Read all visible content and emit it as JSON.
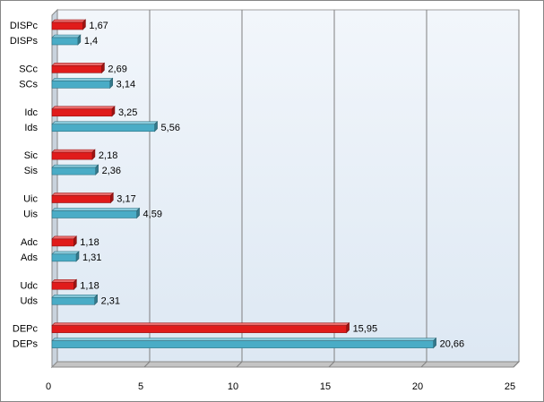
{
  "chart_data": {
    "type": "bar",
    "orientation": "horizontal",
    "categories": [
      "DISPc",
      "DISPs",
      "SCc",
      "SCs",
      "Idc",
      "Ids",
      "Sic",
      "Sis",
      "Uic",
      "Uis",
      "Adc",
      "Ads",
      "Udc",
      "Uds",
      "DEPc",
      "DEPs"
    ],
    "values": [
      1.67,
      1.4,
      2.69,
      3.14,
      3.25,
      5.56,
      2.18,
      2.36,
      3.17,
      4.59,
      1.18,
      1.31,
      1.18,
      2.31,
      15.95,
      20.66
    ],
    "value_labels": [
      "1,67",
      "1,4",
      "2,69",
      "3,14",
      "3,25",
      "5,56",
      "2,18",
      "2,36",
      "3,17",
      "4,59",
      "1,18",
      "1,31",
      "1,18",
      "2,31",
      "15,95",
      "20,66"
    ],
    "bar_colors": [
      "#e01b1b",
      "#4aacc6",
      "#e01b1b",
      "#4aacc6",
      "#e01b1b",
      "#4aacc6",
      "#e01b1b",
      "#4aacc6",
      "#e01b1b",
      "#4aacc6",
      "#e01b1b",
      "#4aacc6",
      "#e01b1b",
      "#4aacc6",
      "#e01b1b",
      "#4aacc6"
    ],
    "xlim": [
      0,
      25
    ],
    "xticks": [
      0,
      5,
      10,
      15,
      20,
      25
    ],
    "xtick_labels": [
      "0",
      "5",
      "10",
      "15",
      "20",
      "25"
    ],
    "grid": "vertical",
    "legend": "none",
    "style": "3d"
  }
}
